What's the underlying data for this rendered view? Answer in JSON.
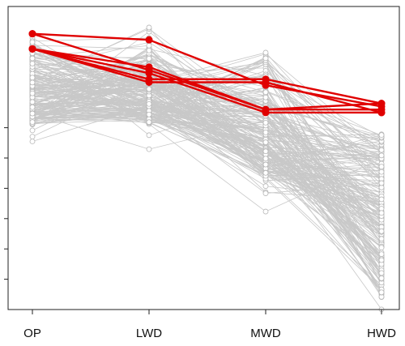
{
  "chart_data": {
    "type": "line",
    "subtype": "parallel-coordinates",
    "title": "",
    "xlabel": "",
    "ylabel": "",
    "categories": [
      "OP",
      "LWD",
      "MWD",
      "HWD"
    ],
    "ylim": [
      0,
      10
    ],
    "y_ticks": [
      1,
      2,
      3,
      4,
      5,
      6
    ],
    "y_tick_labels_shown": false,
    "background_series": {
      "count": 200,
      "color": "#c8c8c8",
      "marker": "open-circle",
      "ranges": [
        [
          5.1,
          9.2
        ],
        [
          5.0,
          9.4
        ],
        [
          3.0,
          8.6
        ],
        [
          0.4,
          5.8
        ]
      ]
    },
    "highlight_series": {
      "color": "#e00000",
      "marker": "filled-circle",
      "series": [
        {
          "values": [
            9.1,
            8.9,
            7.4,
            6.7
          ]
        },
        {
          "values": [
            8.6,
            7.8,
            6.5,
            6.5
          ]
        },
        {
          "values": [
            8.6,
            7.6,
            7.6,
            6.8
          ]
        },
        {
          "values": [
            8.6,
            8.0,
            6.6,
            6.8
          ]
        },
        {
          "values": [
            8.6,
            7.5,
            7.5,
            6.5
          ]
        },
        {
          "values": [
            9.1,
            7.9,
            6.6,
            6.6
          ]
        }
      ]
    }
  }
}
